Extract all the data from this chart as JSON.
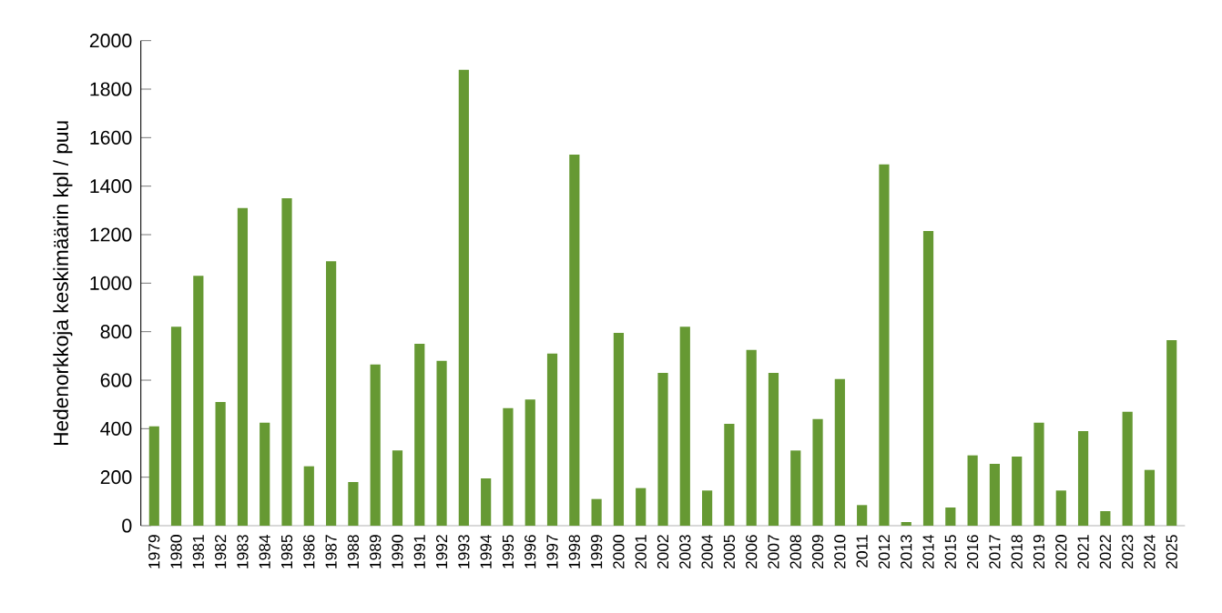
{
  "chart_data": {
    "type": "bar",
    "ylabel": "Hedenorkkoja keskimäärin  kpl / puu",
    "categories": [
      "1979",
      "1980",
      "1981",
      "1982",
      "1983",
      "1984",
      "1985",
      "1986",
      "1987",
      "1988",
      "1989",
      "1990",
      "1991",
      "1992",
      "1993",
      "1994",
      "1995",
      "1996",
      "1997",
      "1998",
      "1999",
      "2000",
      "2001",
      "2002",
      "2003",
      "2004",
      "2005",
      "2006",
      "2007",
      "2008",
      "2009",
      "2010",
      "2011",
      "2012",
      "2013",
      "2014",
      "2015",
      "2016",
      "2017",
      "2018",
      "2019",
      "2020",
      "2021",
      "2022",
      "2023",
      "2024",
      "2025"
    ],
    "values": [
      410,
      820,
      1030,
      510,
      1310,
      425,
      1350,
      245,
      1090,
      180,
      665,
      310,
      750,
      680,
      1880,
      195,
      485,
      520,
      710,
      1530,
      110,
      795,
      155,
      630,
      820,
      145,
      420,
      725,
      630,
      310,
      440,
      605,
      85,
      1490,
      15,
      1215,
      75,
      290,
      255,
      285,
      425,
      145,
      390,
      60,
      470,
      230,
      765
    ],
    "color": "#669933",
    "ylim": [
      0,
      2000
    ],
    "yticks": [
      0,
      200,
      400,
      600,
      800,
      1000,
      1200,
      1400,
      1600,
      1800,
      2000
    ],
    "grid": false
  }
}
